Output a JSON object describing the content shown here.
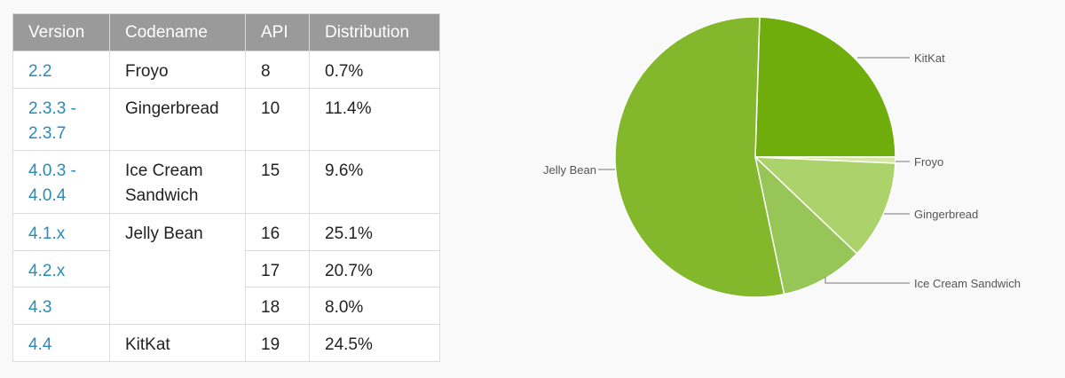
{
  "table": {
    "headers": [
      "Version",
      "Codename",
      "API",
      "Distribution"
    ],
    "rows": [
      {
        "version": "2.2",
        "codename": "Froyo",
        "api": "8",
        "distribution": "0.7%"
      },
      {
        "version": "2.3.3 - 2.3.7",
        "codename": "Gingerbread",
        "api": "10",
        "distribution": "11.4%"
      },
      {
        "version": "4.0.3 - 4.0.4",
        "codename": "Ice Cream Sandwich",
        "api": "15",
        "distribution": "9.6%"
      },
      {
        "version": "4.1.x",
        "codename": "Jelly Bean",
        "api": "16",
        "distribution": "25.1%"
      },
      {
        "version": "4.2.x",
        "codename": "",
        "api": "17",
        "distribution": "20.7%"
      },
      {
        "version": "4.3",
        "codename": "",
        "api": "18",
        "distribution": "8.0%"
      },
      {
        "version": "4.4",
        "codename": "KitKat",
        "api": "19",
        "distribution": "24.5%"
      }
    ]
  },
  "chart_data": {
    "type": "pie",
    "categories": [
      "KitKat",
      "Froyo",
      "Gingerbread",
      "Ice Cream Sandwich",
      "Jelly Bean"
    ],
    "values": [
      24.5,
      0.7,
      11.4,
      9.6,
      53.8
    ],
    "colors": [
      "#6fad0c",
      "#d4e8a4",
      "#acd26c",
      "#98c557",
      "#83b82c"
    ]
  }
}
